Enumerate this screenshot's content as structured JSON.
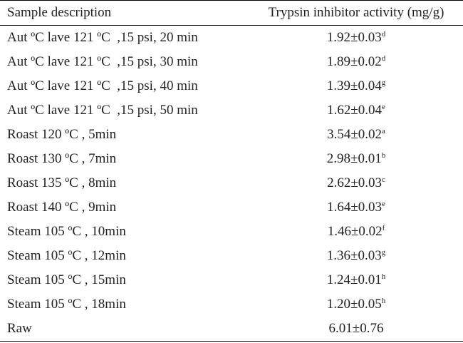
{
  "table": {
    "header": [
      "Sample description",
      "Trypsin inhibitor activity (mg/g)"
    ],
    "rows": [
      [
        "Aut ºC lave 121 ºC  ,15 psi, 20 min",
        "1.92±0.03",
        "d"
      ],
      [
        "Aut ºC lave 121 ºC  ,15 psi, 30 min",
        "1.89±0.02",
        "d"
      ],
      [
        "Aut ºC lave 121 ºC  ,15 psi, 40 min",
        "1.39±0.04",
        "g"
      ],
      [
        "Aut ºC lave 121 ºC  ,15 psi, 50 min",
        "1.62±0.04",
        "e"
      ],
      [
        "Roast 120 ºC , 5min",
        "3.54±0.02",
        "a"
      ],
      [
        "Roast 130 ºC , 7min",
        "2.98±0.01",
        "b"
      ],
      [
        "Roast 135 ºC , 8min",
        "2.62±0.03",
        "c"
      ],
      [
        "Roast 140 ºC , 9min",
        "1.64±0.03",
        "e"
      ],
      [
        "Steam 105 ºC , 10min",
        "1.46±0.02",
        "f"
      ],
      [
        "Steam 105 ºC , 12min",
        "1.36±0.03",
        "g"
      ],
      [
        "Steam 105 ºC , 15min",
        "1.24±0.01",
        "h"
      ],
      [
        "Steam 105 ºC , 18min",
        "1.20±0.05",
        "h"
      ],
      [
        "Raw",
        "6.01±0.76"
      ]
    ]
  }
}
